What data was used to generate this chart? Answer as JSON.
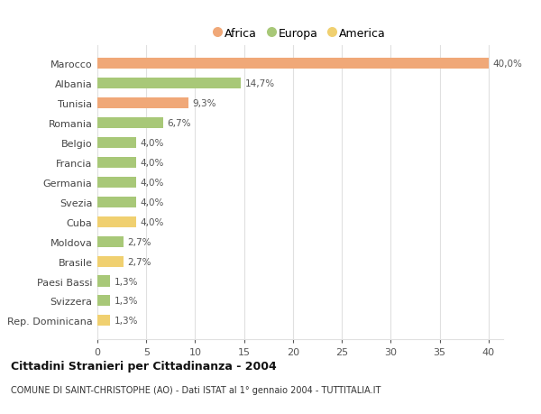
{
  "categories": [
    "Marocco",
    "Albania",
    "Tunisia",
    "Romania",
    "Belgio",
    "Francia",
    "Germania",
    "Svezia",
    "Cuba",
    "Moldova",
    "Brasile",
    "Paesi Bassi",
    "Svizzera",
    "Rep. Dominicana"
  ],
  "values": [
    40.0,
    14.7,
    9.3,
    6.7,
    4.0,
    4.0,
    4.0,
    4.0,
    4.0,
    2.7,
    2.7,
    1.3,
    1.3,
    1.3
  ],
  "colors": [
    "#F0A878",
    "#A8C878",
    "#F0A878",
    "#A8C878",
    "#A8C878",
    "#A8C878",
    "#A8C878",
    "#A8C878",
    "#F0D070",
    "#A8C878",
    "#F0D070",
    "#A8C878",
    "#A8C878",
    "#F0D070"
  ],
  "labels": [
    "40,0%",
    "14,7%",
    "9,3%",
    "6,7%",
    "4,0%",
    "4,0%",
    "4,0%",
    "4,0%",
    "4,0%",
    "2,7%",
    "2,7%",
    "1,3%",
    "1,3%",
    "1,3%"
  ],
  "legend_labels": [
    "Africa",
    "Europa",
    "America"
  ],
  "legend_colors": [
    "#F0A878",
    "#A8C878",
    "#F0D070"
  ],
  "title": "Cittadini Stranieri per Cittadinanza - 2004",
  "subtitle": "COMUNE DI SAINT-CHRISTOPHE (AO) - Dati ISTAT al 1° gennaio 2004 - TUTTITALIA.IT",
  "xlim": [
    0,
    41.5
  ],
  "xticks": [
    0,
    5,
    10,
    15,
    20,
    25,
    30,
    35,
    40
  ],
  "background_color": "#ffffff",
  "grid_color": "#e0e0e0"
}
